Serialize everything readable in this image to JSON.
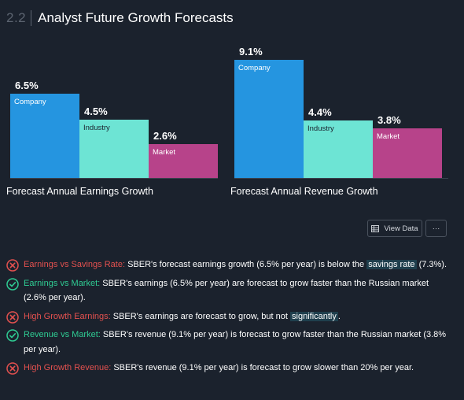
{
  "header": {
    "number": "2.2",
    "title": "Analyst Future Growth Forecasts"
  },
  "colors": {
    "company": "#2595e0",
    "industry": "#6de4d4",
    "market": "#b7438a",
    "fail": "#e3514f",
    "pass": "#2fcc93"
  },
  "chart_data": [
    {
      "type": "bar",
      "title": "Forecast Annual Earnings Growth",
      "categories": [
        "Company",
        "Industry",
        "Market"
      ],
      "values": [
        6.5,
        4.5,
        2.6
      ],
      "value_labels": [
        "6.5%",
        "4.5%",
        "2.6%"
      ],
      "ylim": [
        0,
        9.1
      ]
    },
    {
      "type": "bar",
      "title": "Forecast Annual Revenue Growth",
      "categories": [
        "Company",
        "Industry",
        "Market"
      ],
      "values": [
        9.1,
        4.4,
        3.8
      ],
      "value_labels": [
        "9.1%",
        "4.4%",
        "3.8%"
      ],
      "ylim": [
        0,
        9.1
      ]
    }
  ],
  "buttons": {
    "view_data": "View Data",
    "more": "···"
  },
  "checks": [
    {
      "status": "fail",
      "icon": "x-circle-icon",
      "label": "Earnings vs Savings Rate:",
      "pre": " SBER's forecast earnings growth (6.5% per year) is below the ",
      "hl": "savings rate",
      "post": " (7.3%)."
    },
    {
      "status": "pass",
      "icon": "check-circle-icon",
      "label": "Earnings vs Market:",
      "pre": " SBER's earnings (6.5% per year) are forecast to grow faster than the Russian market (2.6% per year).",
      "hl": "",
      "post": ""
    },
    {
      "status": "fail",
      "icon": "x-circle-icon",
      "label": "High Growth Earnings:",
      "pre": " SBER's earnings are forecast to grow, but not ",
      "hl": "significantly",
      "post": "."
    },
    {
      "status": "pass",
      "icon": "check-circle-icon",
      "label": "Revenue vs Market:",
      "pre": " SBER's revenue (9.1% per year) is forecast to grow faster than the Russian market (3.8% per year).",
      "hl": "",
      "post": ""
    },
    {
      "status": "fail",
      "icon": "x-circle-icon",
      "label": "High Growth Revenue:",
      "pre": " SBER's revenue (9.1% per year) is forecast to grow slower than 20% per year.",
      "hl": "",
      "post": ""
    }
  ]
}
